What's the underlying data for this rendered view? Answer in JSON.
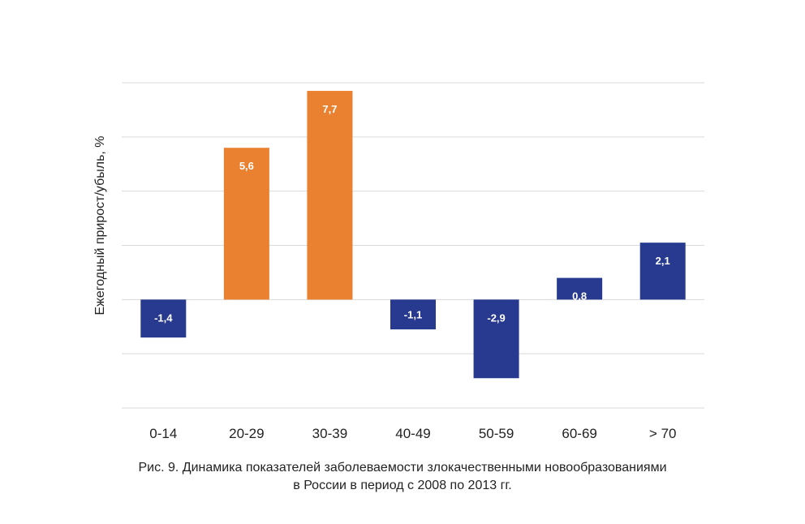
{
  "chart_data": {
    "type": "bar",
    "title": "",
    "xlabel": "",
    "ylabel": "Ежегодный прирост/убыль, %",
    "categories": [
      "0-14",
      "20-29",
      "30-39",
      "40-49",
      "50-59",
      "60-69",
      "> 70"
    ],
    "values": [
      -1.4,
      5.6,
      7.7,
      -1.1,
      -2.9,
      0.8,
      2.1
    ],
    "value_labels": [
      "-1,4",
      "5,6",
      "7,7",
      "-1,1",
      "-2,9",
      "0,8",
      "2,1"
    ],
    "colors": [
      "#283a8f",
      "#e98131",
      "#e98131",
      "#283a8f",
      "#283a8f",
      "#283a8f",
      "#283a8f"
    ],
    "ylim": [
      -4,
      8
    ],
    "gridline_values": [
      -4,
      -2,
      0,
      2,
      4,
      6,
      8
    ],
    "grid": true,
    "legend": "none"
  },
  "colors": {
    "positive_bar": "#e98131",
    "negative_bar": "#283a8f",
    "gridline": "#d9d9d9",
    "text": "#222222"
  },
  "caption": {
    "line1": "Рис. 9. Динамика показателей заболеваемости злокачественными новообразованиями",
    "line2": "в России в период с 2008 по 2013 гг."
  }
}
